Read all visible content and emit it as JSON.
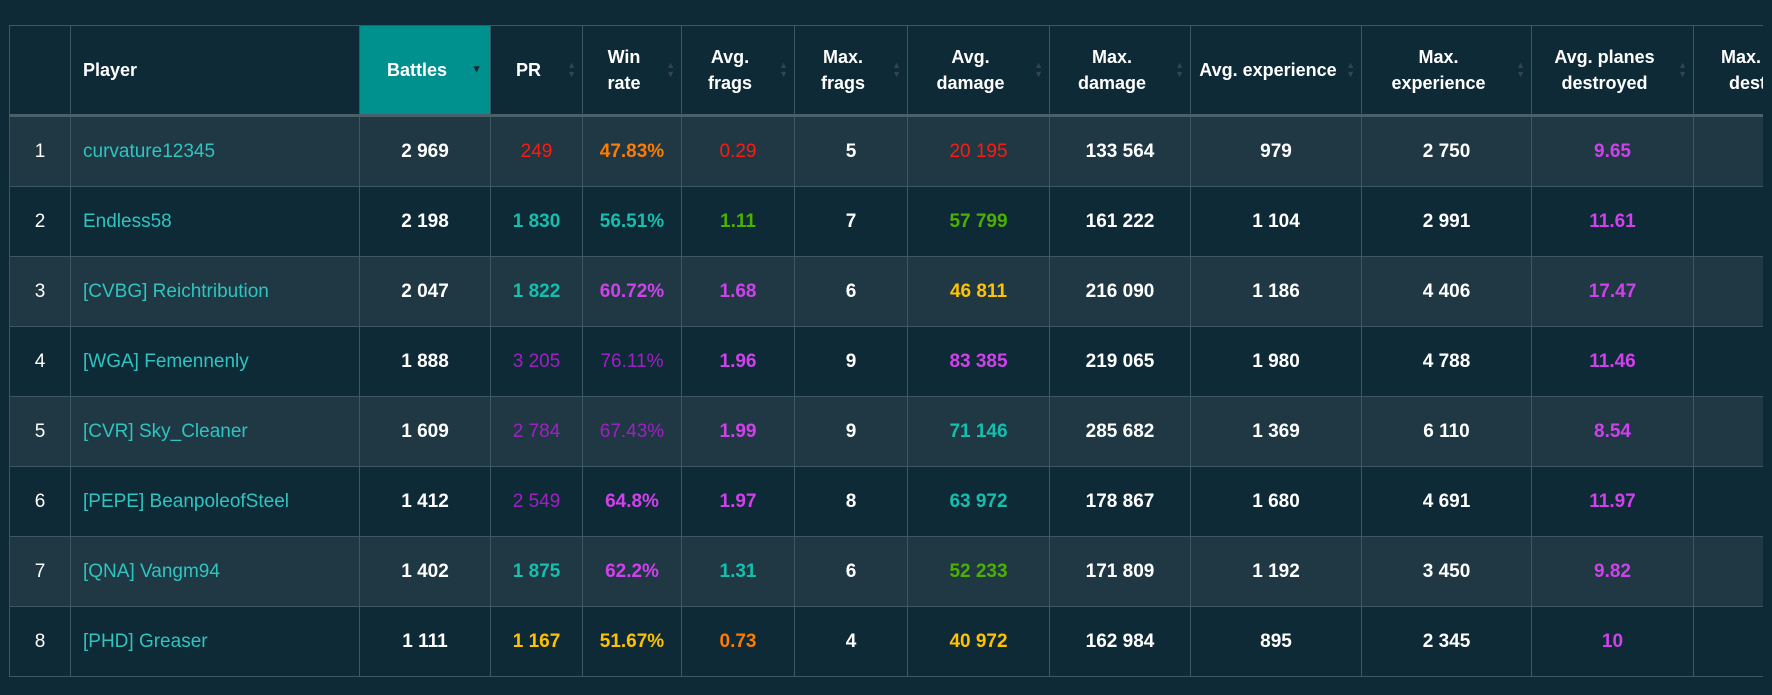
{
  "columns": [
    "",
    "Player",
    "Battles",
    "PR",
    "Win rate",
    "Avg. frags",
    "Max. frags",
    "Avg. damage",
    "Max. damage",
    "Avg. experience",
    "Max. experience",
    "Avg. planes destroyed",
    "Max. planes destroyed"
  ],
  "sorted_column": "Battles",
  "sort_direction": "descending",
  "colors": {
    "red": "#ff1a10",
    "orange": "#ff7a00",
    "yellow": "#ffc200",
    "green": "#4cb000",
    "teal": "#14bfae",
    "magenta": "#d040ec",
    "purple": "#a020c4",
    "header_sorted": "#00918f"
  },
  "rows": [
    {
      "rank": "1",
      "player": "curvature12345",
      "battles": "2 969",
      "pr": [
        "249",
        "red"
      ],
      "win_rate": [
        "47.83%",
        "orange"
      ],
      "avg_frags": [
        "0.29",
        "red"
      ],
      "max_frags": "5",
      "avg_damage": [
        "20 195",
        "red"
      ],
      "max_damage": "133 564",
      "avg_exp": "979",
      "max_exp": "2 750",
      "avg_planes": [
        "9.65",
        "magenta"
      ]
    },
    {
      "rank": "2",
      "player": "Endless58",
      "battles": "2 198",
      "pr": [
        "1 830",
        "teal"
      ],
      "win_rate": [
        "56.51%",
        "teal"
      ],
      "avg_frags": [
        "1.11",
        "green"
      ],
      "max_frags": "7",
      "avg_damage": [
        "57 799",
        "green"
      ],
      "max_damage": "161 222",
      "avg_exp": "1 104",
      "max_exp": "2 991",
      "avg_planes": [
        "11.61",
        "magenta"
      ]
    },
    {
      "rank": "3",
      "player": "[CVBG] Reichtribution",
      "battles": "2 047",
      "pr": [
        "1 822",
        "teal"
      ],
      "win_rate": [
        "60.72%",
        "magenta"
      ],
      "avg_frags": [
        "1.68",
        "magenta"
      ],
      "max_frags": "6",
      "avg_damage": [
        "46 811",
        "yellow"
      ],
      "max_damage": "216 090",
      "avg_exp": "1 186",
      "max_exp": "4 406",
      "avg_planes": [
        "17.47",
        "magenta"
      ]
    },
    {
      "rank": "4",
      "player": "[WGA] Femennenly",
      "battles": "1 888",
      "pr": [
        "3 205",
        "purple"
      ],
      "win_rate": [
        "76.11%",
        "purple"
      ],
      "avg_frags": [
        "1.96",
        "magenta"
      ],
      "max_frags": "9",
      "avg_damage": [
        "83 385",
        "magenta"
      ],
      "max_damage": "219 065",
      "avg_exp": "1 980",
      "max_exp": "4 788",
      "avg_planes": [
        "11.46",
        "magenta"
      ]
    },
    {
      "rank": "5",
      "player": "[CVR] Sky_Cleaner",
      "battles": "1 609",
      "pr": [
        "2 784",
        "purple"
      ],
      "win_rate": [
        "67.43%",
        "purple"
      ],
      "avg_frags": [
        "1.99",
        "magenta"
      ],
      "max_frags": "9",
      "avg_damage": [
        "71 146",
        "teal"
      ],
      "max_damage": "285 682",
      "avg_exp": "1 369",
      "max_exp": "6 110",
      "avg_planes": [
        "8.54",
        "magenta"
      ]
    },
    {
      "rank": "6",
      "player": "[PEPE] BeanpoleofSteel",
      "battles": "1 412",
      "pr": [
        "2 549",
        "purple"
      ],
      "win_rate": [
        "64.8%",
        "magenta"
      ],
      "avg_frags": [
        "1.97",
        "magenta"
      ],
      "max_frags": "8",
      "avg_damage": [
        "63 972",
        "teal"
      ],
      "max_damage": "178 867",
      "avg_exp": "1 680",
      "max_exp": "4 691",
      "avg_planes": [
        "11.97",
        "magenta"
      ]
    },
    {
      "rank": "7",
      "player": "[QNA] Vangm94",
      "battles": "1 402",
      "pr": [
        "1 875",
        "teal"
      ],
      "win_rate": [
        "62.2%",
        "magenta"
      ],
      "avg_frags": [
        "1.31",
        "teal"
      ],
      "max_frags": "6",
      "avg_damage": [
        "52 233",
        "green"
      ],
      "max_damage": "171 809",
      "avg_exp": "1 192",
      "max_exp": "3 450",
      "avg_planes": [
        "9.82",
        "magenta"
      ]
    },
    {
      "rank": "8",
      "player": "[PHD] Greaser",
      "battles": "1 111",
      "pr": [
        "1 167",
        "yellow"
      ],
      "win_rate": [
        "51.67%",
        "yellow"
      ],
      "avg_frags": [
        "0.73",
        "orange"
      ],
      "max_frags": "4",
      "avg_damage": [
        "40 972",
        "yellow"
      ],
      "max_damage": "162 984",
      "avg_exp": "895",
      "max_exp": "2 345",
      "avg_planes": [
        "10",
        "magenta"
      ]
    }
  ]
}
